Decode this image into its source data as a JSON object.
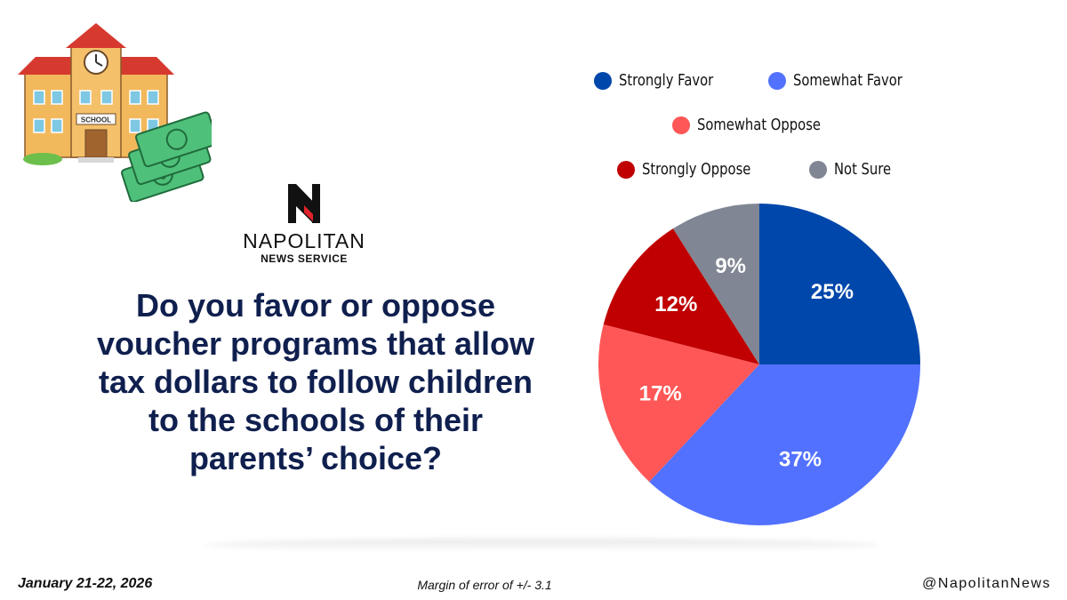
{
  "header": {
    "brand_name": "NAPOLITAN",
    "brand_subtitle": "NEWS SERVICE",
    "illustration_sign": "SCHOOL"
  },
  "question": "Do you favor or oppose voucher programs that allow tax dollars to follow children to the schools of their parents’ choice?",
  "footer": {
    "date": "January 21-22, 2026",
    "margin": "Margin of error of +/- 3.1",
    "handle": "@NapolitanNews"
  },
  "chart_data": {
    "type": "pie",
    "legend_position": "top",
    "series": [
      {
        "name": "Strongly Favor",
        "value": 25,
        "label": "25%",
        "color": "#0047ab"
      },
      {
        "name": "Somewhat Favor",
        "value": 37,
        "label": "37%",
        "color": "#5271ff"
      },
      {
        "name": "Somewhat Oppose",
        "value": 17,
        "label": "17%",
        "color": "#ff5757"
      },
      {
        "name": "Strongly Oppose",
        "value": 12,
        "label": "12%",
        "color": "#c00000"
      },
      {
        "name": "Not Sure",
        "value": 9,
        "label": "9%",
        "color": "#808693"
      }
    ]
  }
}
